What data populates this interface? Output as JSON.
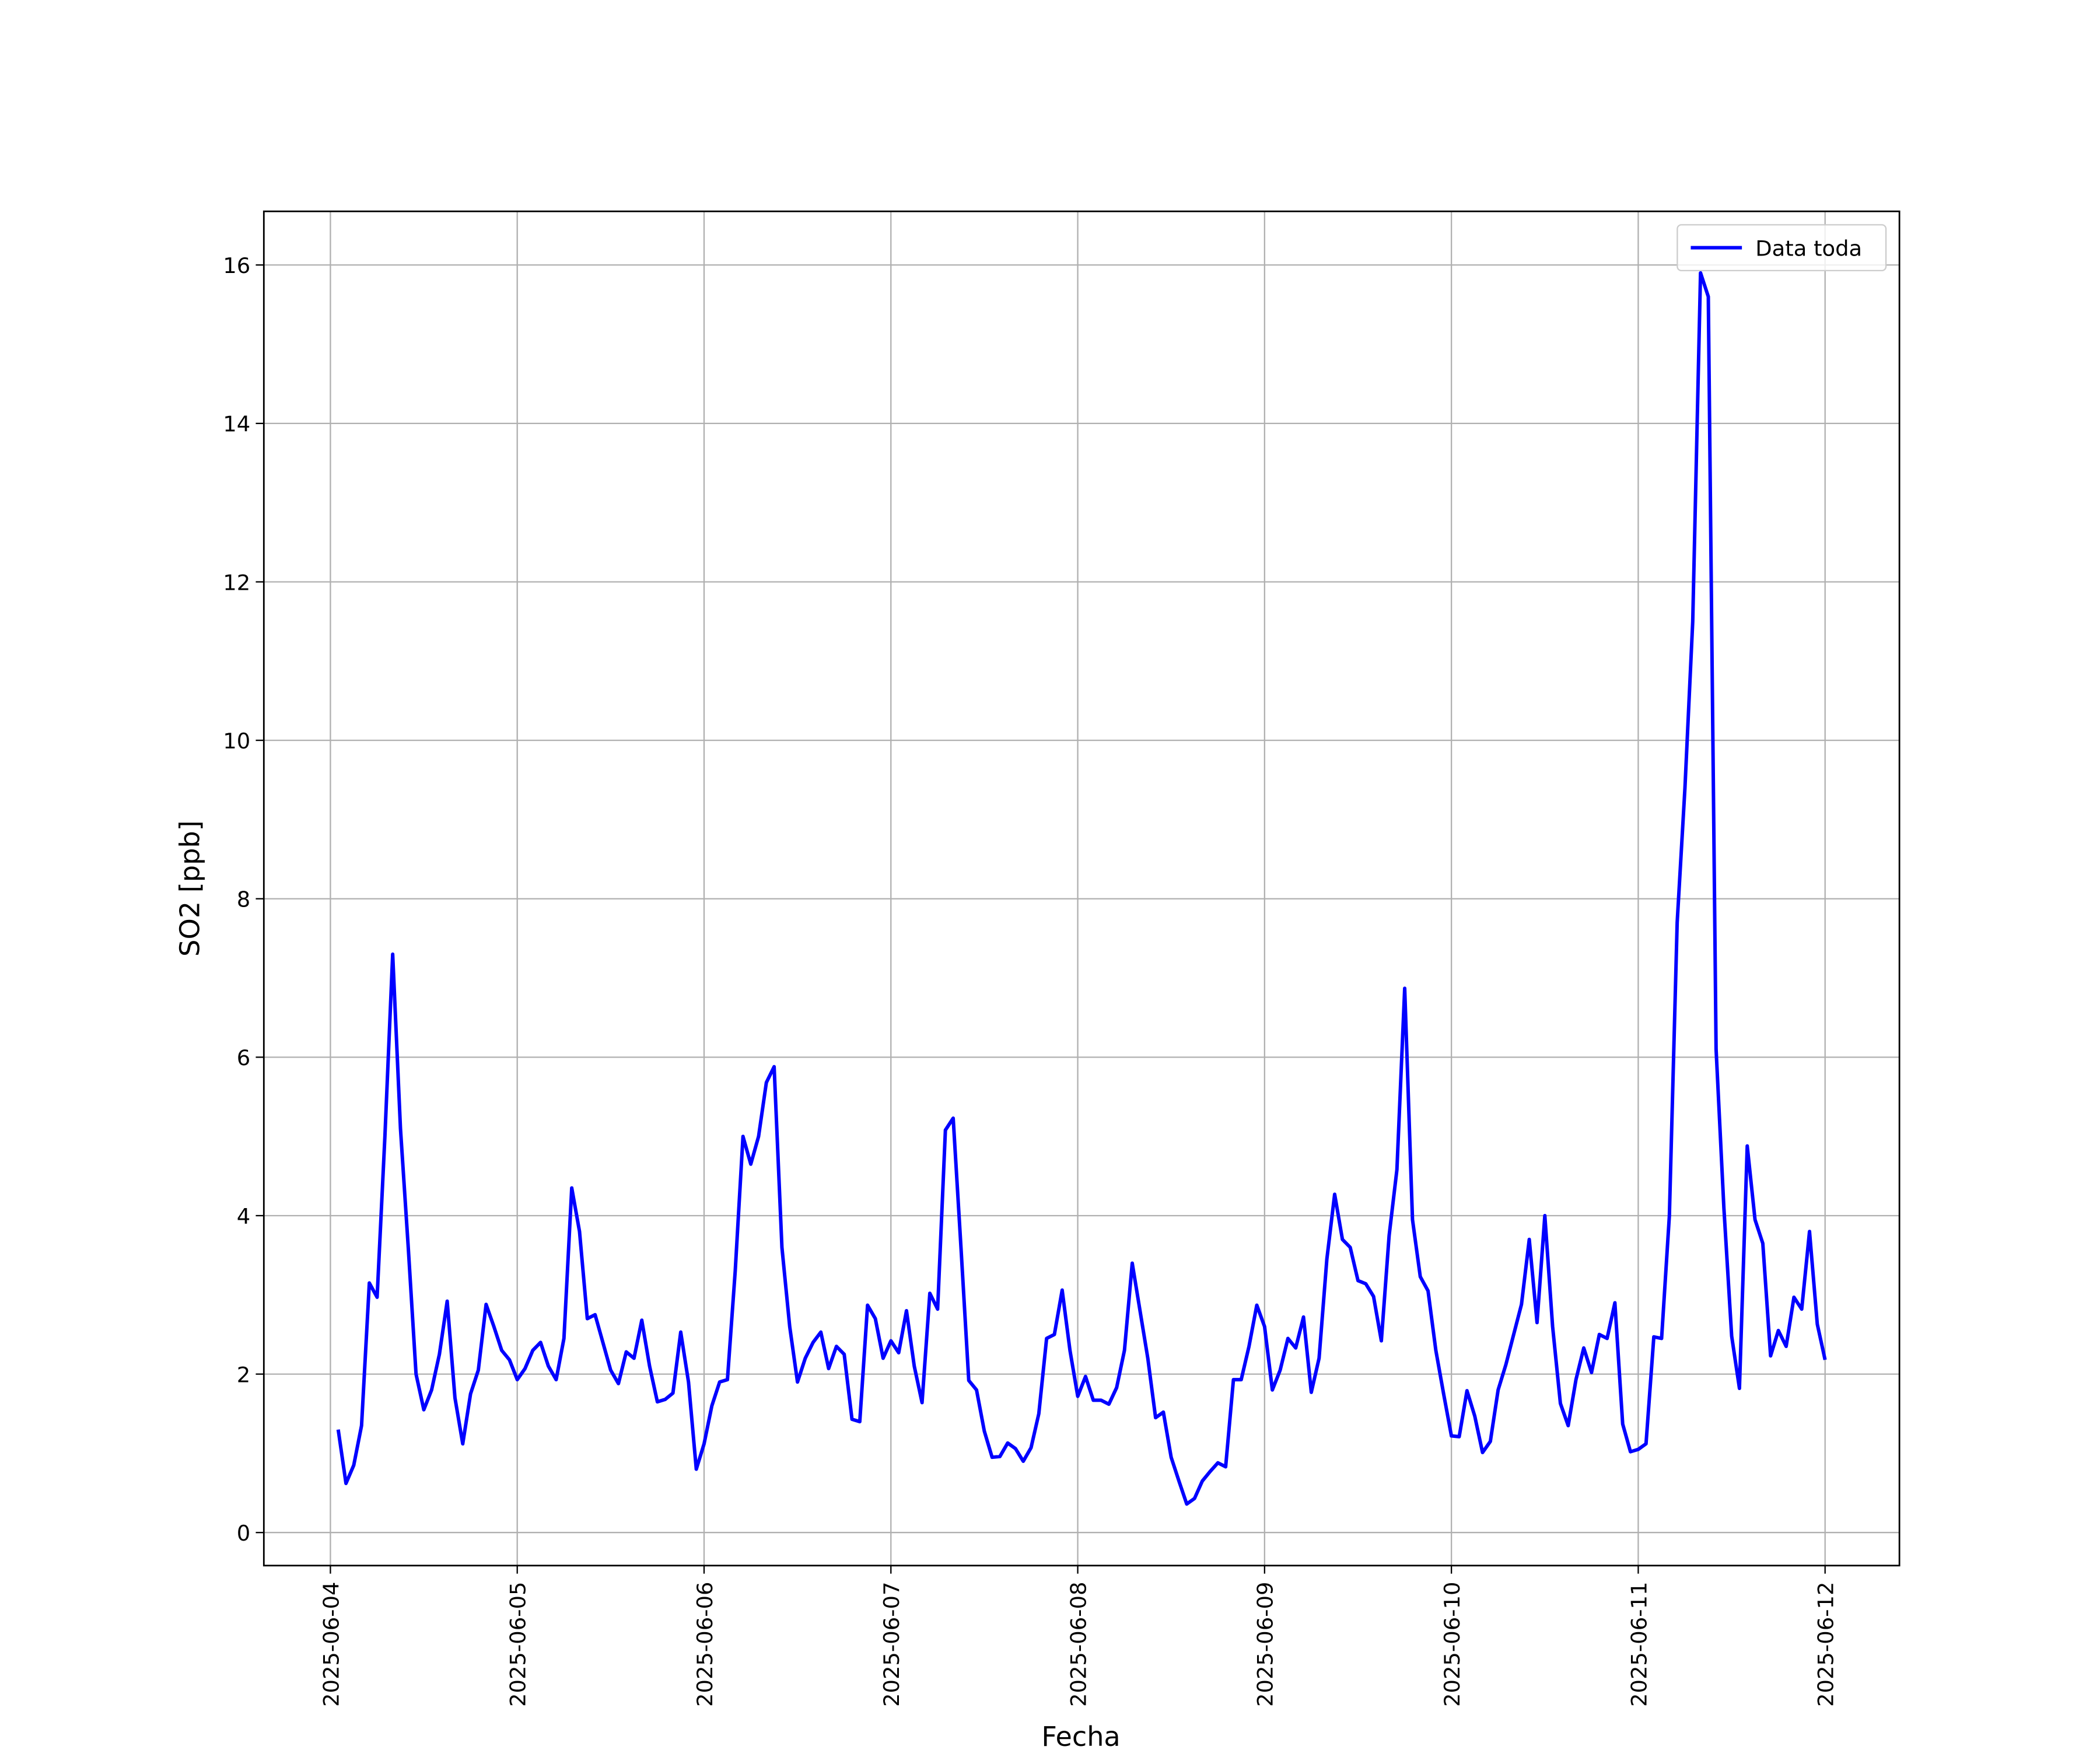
{
  "chart_data": {
    "type": "line",
    "xlabel": "Fecha",
    "ylabel": "SO2 [ppb]",
    "x": [
      "2025-06-04 01:00",
      "2025-06-04 02:00",
      "2025-06-04 03:00",
      "2025-06-04 04:00",
      "2025-06-04 05:00",
      "2025-06-04 06:00",
      "2025-06-04 07:00",
      "2025-06-04 08:00",
      "2025-06-04 09:00",
      "2025-06-04 10:00",
      "2025-06-04 11:00",
      "2025-06-04 12:00",
      "2025-06-04 13:00",
      "2025-06-04 14:00",
      "2025-06-04 15:00",
      "2025-06-04 16:00",
      "2025-06-04 17:00",
      "2025-06-04 18:00",
      "2025-06-04 19:00",
      "2025-06-04 20:00",
      "2025-06-04 21:00",
      "2025-06-04 22:00",
      "2025-06-04 23:00",
      "2025-06-05 00:00",
      "2025-06-05 01:00",
      "2025-06-05 02:00",
      "2025-06-05 03:00",
      "2025-06-05 04:00",
      "2025-06-05 05:00",
      "2025-06-05 06:00",
      "2025-06-05 07:00",
      "2025-06-05 08:00",
      "2025-06-05 09:00",
      "2025-06-05 10:00",
      "2025-06-05 11:00",
      "2025-06-05 12:00",
      "2025-06-05 13:00",
      "2025-06-05 14:00",
      "2025-06-05 15:00",
      "2025-06-05 16:00",
      "2025-06-05 17:00",
      "2025-06-05 18:00",
      "2025-06-05 19:00",
      "2025-06-05 20:00",
      "2025-06-05 21:00",
      "2025-06-05 22:00",
      "2025-06-05 23:00",
      "2025-06-06 00:00",
      "2025-06-06 01:00",
      "2025-06-06 02:00",
      "2025-06-06 03:00",
      "2025-06-06 04:00",
      "2025-06-06 05:00",
      "2025-06-06 06:00",
      "2025-06-06 07:00",
      "2025-06-06 08:00",
      "2025-06-06 09:00",
      "2025-06-06 10:00",
      "2025-06-06 11:00",
      "2025-06-06 12:00",
      "2025-06-06 13:00",
      "2025-06-06 14:00",
      "2025-06-06 15:00",
      "2025-06-06 16:00",
      "2025-06-06 17:00",
      "2025-06-06 18:00",
      "2025-06-06 19:00",
      "2025-06-06 20:00",
      "2025-06-06 21:00",
      "2025-06-06 22:00",
      "2025-06-06 23:00",
      "2025-06-07 00:00",
      "2025-06-07 01:00",
      "2025-06-07 02:00",
      "2025-06-07 03:00",
      "2025-06-07 04:00",
      "2025-06-07 05:00",
      "2025-06-07 06:00",
      "2025-06-07 07:00",
      "2025-06-07 08:00",
      "2025-06-07 09:00",
      "2025-06-07 10:00",
      "2025-06-07 11:00",
      "2025-06-07 12:00",
      "2025-06-07 13:00",
      "2025-06-07 14:00",
      "2025-06-07 15:00",
      "2025-06-07 16:00",
      "2025-06-07 17:00",
      "2025-06-07 18:00",
      "2025-06-07 19:00",
      "2025-06-07 20:00",
      "2025-06-07 21:00",
      "2025-06-07 22:00",
      "2025-06-07 23:00",
      "2025-06-08 00:00",
      "2025-06-08 01:00",
      "2025-06-08 02:00",
      "2025-06-08 03:00",
      "2025-06-08 04:00",
      "2025-06-08 05:00",
      "2025-06-08 06:00",
      "2025-06-08 07:00",
      "2025-06-08 08:00",
      "2025-06-08 09:00",
      "2025-06-08 10:00",
      "2025-06-08 11:00",
      "2025-06-08 12:00",
      "2025-06-08 13:00",
      "2025-06-08 14:00",
      "2025-06-08 15:00",
      "2025-06-08 16:00",
      "2025-06-08 17:00",
      "2025-06-08 18:00",
      "2025-06-08 19:00",
      "2025-06-08 20:00",
      "2025-06-08 21:00",
      "2025-06-08 22:00",
      "2025-06-08 23:00",
      "2025-06-09 00:00",
      "2025-06-09 01:00",
      "2025-06-09 02:00",
      "2025-06-09 03:00",
      "2025-06-09 04:00",
      "2025-06-09 05:00",
      "2025-06-09 06:00",
      "2025-06-09 07:00",
      "2025-06-09 08:00",
      "2025-06-09 09:00",
      "2025-06-09 10:00",
      "2025-06-09 11:00",
      "2025-06-09 12:00",
      "2025-06-09 13:00",
      "2025-06-09 14:00",
      "2025-06-09 15:00",
      "2025-06-09 16:00",
      "2025-06-09 17:00",
      "2025-06-09 18:00",
      "2025-06-09 19:00",
      "2025-06-09 20:00",
      "2025-06-09 21:00",
      "2025-06-09 22:00",
      "2025-06-09 23:00",
      "2025-06-10 00:00",
      "2025-06-10 01:00",
      "2025-06-10 02:00",
      "2025-06-10 03:00",
      "2025-06-10 04:00",
      "2025-06-10 05:00",
      "2025-06-10 06:00",
      "2025-06-10 07:00",
      "2025-06-10 08:00",
      "2025-06-10 09:00",
      "2025-06-10 10:00",
      "2025-06-10 11:00",
      "2025-06-10 12:00",
      "2025-06-10 13:00",
      "2025-06-10 14:00",
      "2025-06-10 15:00",
      "2025-06-10 16:00",
      "2025-06-10 17:00",
      "2025-06-10 18:00",
      "2025-06-10 19:00",
      "2025-06-10 20:00",
      "2025-06-10 21:00",
      "2025-06-10 22:00",
      "2025-06-10 23:00",
      "2025-06-11 00:00",
      "2025-06-11 01:00",
      "2025-06-11 02:00",
      "2025-06-11 03:00",
      "2025-06-11 04:00",
      "2025-06-11 05:00",
      "2025-06-11 06:00",
      "2025-06-11 07:00",
      "2025-06-11 08:00",
      "2025-06-11 09:00",
      "2025-06-11 10:00",
      "2025-06-11 11:00",
      "2025-06-11 12:00",
      "2025-06-11 13:00",
      "2025-06-11 14:00",
      "2025-06-11 15:00",
      "2025-06-11 16:00",
      "2025-06-11 17:00",
      "2025-06-11 18:00",
      "2025-06-11 19:00",
      "2025-06-11 20:00",
      "2025-06-11 21:00",
      "2025-06-11 22:00",
      "2025-06-11 23:00",
      "2025-06-12 00:00"
    ],
    "series": [
      {
        "name": "Data toda",
        "color": "#0000ff",
        "values": [
          1.3,
          0.62,
          0.85,
          1.35,
          3.15,
          2.97,
          5.0,
          7.3,
          5.1,
          3.6,
          2.0,
          1.55,
          1.8,
          2.25,
          2.92,
          1.7,
          1.12,
          1.75,
          2.05,
          2.88,
          2.6,
          2.3,
          2.18,
          1.93,
          2.07,
          2.3,
          2.4,
          2.1,
          1.93,
          2.45,
          4.35,
          3.8,
          2.7,
          2.75,
          2.4,
          2.05,
          1.88,
          2.28,
          2.2,
          2.68,
          2.1,
          1.65,
          1.68,
          1.76,
          2.53,
          1.9,
          0.8,
          1.12,
          1.6,
          1.9,
          1.93,
          3.3,
          5.0,
          4.65,
          5.0,
          5.68,
          5.88,
          3.6,
          2.6,
          1.9,
          2.2,
          2.4,
          2.53,
          2.07,
          2.35,
          2.25,
          1.43,
          1.4,
          2.87,
          2.7,
          2.2,
          2.42,
          2.27,
          2.8,
          2.1,
          1.64,
          3.02,
          2.82,
          5.08,
          5.23,
          3.6,
          1.92,
          1.8,
          1.28,
          0.95,
          0.96,
          1.13,
          1.06,
          0.9,
          1.07,
          1.5,
          2.45,
          2.5,
          3.06,
          2.3,
          1.72,
          1.97,
          1.67,
          1.67,
          1.62,
          1.83,
          2.3,
          3.4,
          2.8,
          2.2,
          1.45,
          1.52,
          0.95,
          0.65,
          0.36,
          0.43,
          0.65,
          0.77,
          0.88,
          0.83,
          1.93,
          1.93,
          2.35,
          2.87,
          2.6,
          1.8,
          2.05,
          2.45,
          2.33,
          2.72,
          1.77,
          2.2,
          3.45,
          4.27,
          3.7,
          3.6,
          3.18,
          3.14,
          2.98,
          2.42,
          3.75,
          4.58,
          6.87,
          3.95,
          3.23,
          3.05,
          2.3,
          1.75,
          1.22,
          1.21,
          1.79,
          1.47,
          1.01,
          1.15,
          1.8,
          2.12,
          2.5,
          2.88,
          3.7,
          2.65,
          4.0,
          2.6,
          1.63,
          1.35,
          1.93,
          2.33,
          2.02,
          2.5,
          2.45,
          2.9,
          1.37,
          1.02,
          1.05,
          1.12,
          2.47,
          2.45,
          4.0,
          7.7,
          9.4,
          11.5,
          15.9,
          15.6,
          6.1,
          4.1,
          2.48,
          1.82,
          4.88,
          3.95,
          3.65,
          2.23,
          2.55,
          2.35,
          2.97,
          2.82,
          3.8,
          2.63,
          2.18
        ]
      }
    ],
    "xlim": [
      "2025-06-03 15:27",
      "2025-06-12 09:33"
    ],
    "xticks": [
      "2025-06-04",
      "2025-06-05",
      "2025-06-06",
      "2025-06-07",
      "2025-06-08",
      "2025-06-09",
      "2025-06-10",
      "2025-06-11",
      "2025-06-12"
    ],
    "ylim": [
      -0.417,
      16.677
    ],
    "yticks": [
      0,
      2,
      4,
      6,
      8,
      10,
      12,
      14,
      16
    ],
    "grid": true,
    "legend": "upper right"
  }
}
